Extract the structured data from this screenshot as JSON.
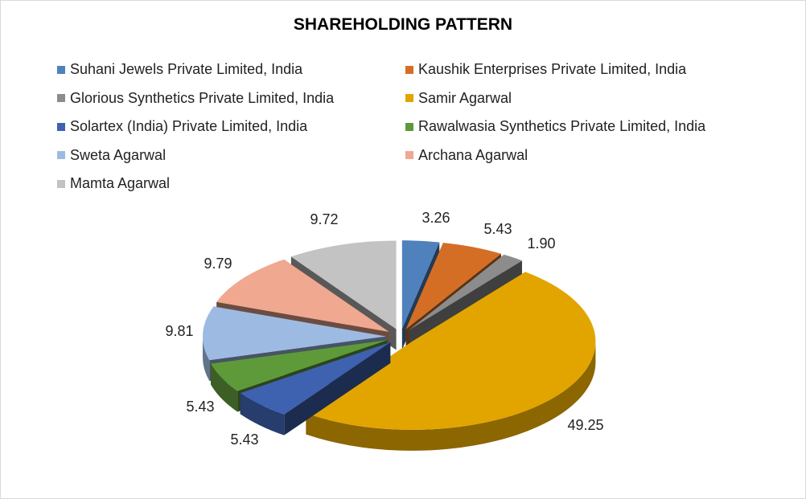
{
  "chart_data": {
    "type": "pie",
    "title": "SHAREHOLDING PATTERN",
    "legend_position": "top",
    "style": "3d-exploded",
    "slices": [
      {
        "name": "Suhani Jewels Private Limited, India",
        "value": 3.26,
        "label": "3.26",
        "color": "#4f81bd"
      },
      {
        "name": "Kaushik Enterprises Private Limited, India",
        "value": 5.43,
        "label": "5.43",
        "color": "#d46e25"
      },
      {
        "name": "Glorious Synthetics Private Limited, India",
        "value": 1.9,
        "label": "1.90",
        "color": "#8c8c8c"
      },
      {
        "name": "Samir Agarwal",
        "value": 49.25,
        "label": "49.25",
        "color": "#e2a500"
      },
      {
        "name": "Solartex (India) Private Limited, India",
        "value": 5.43,
        "label": "5.43",
        "color": "#3e62b0"
      },
      {
        "name": "Rawalwasia Synthetics Private Limited, India",
        "value": 5.43,
        "label": "5.43",
        "color": "#5f9a3a"
      },
      {
        "name": "Sweta Agarwal",
        "value": 9.81,
        "label": "9.81",
        "color": "#9dbbe2"
      },
      {
        "name": "Archana Agarwal",
        "value": 9.79,
        "label": "9.79",
        "color": "#f0a890"
      },
      {
        "name": "Mamta Agarwal",
        "value": 9.72,
        "label": "9.72",
        "color": "#c3c3c3"
      }
    ]
  }
}
